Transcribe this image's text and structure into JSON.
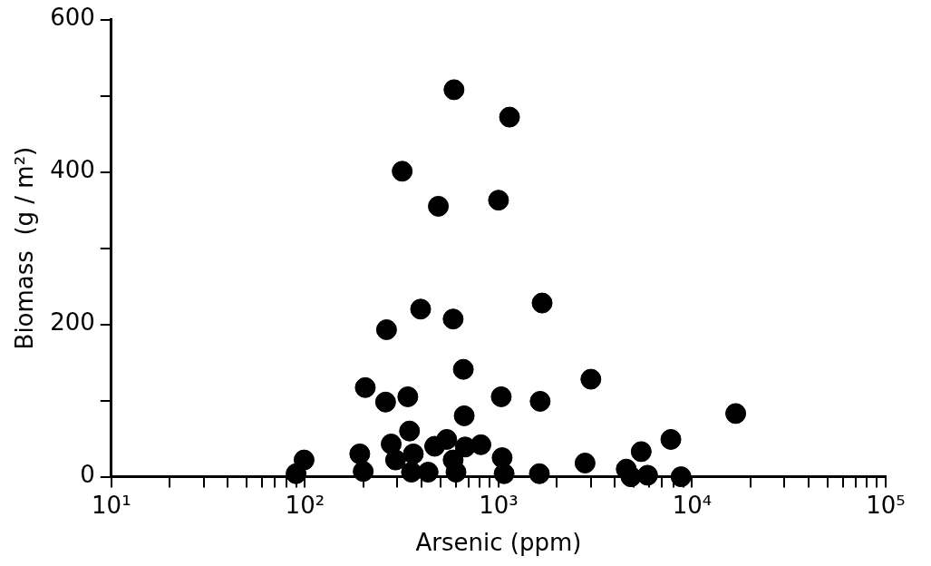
{
  "chart_data": {
    "type": "scatter",
    "xlabel": "Arsenic (ppm)",
    "ylabel": "Biomass  (g / m²)",
    "log": "x",
    "grid": false,
    "legend": false,
    "marker": "circle",
    "xlim": [
      10,
      100000
    ],
    "ylim": [
      0,
      600
    ],
    "xticks": [
      {
        "value": 10,
        "label": "10¹"
      },
      {
        "value": 20,
        "label": null
      },
      {
        "value": 30,
        "label": null
      },
      {
        "value": 40,
        "label": null
      },
      {
        "value": 50,
        "label": null
      },
      {
        "value": 60,
        "label": null
      },
      {
        "value": 70,
        "label": null
      },
      {
        "value": 80,
        "label": null
      },
      {
        "value": 90,
        "label": null
      },
      {
        "value": 100,
        "label": "10²"
      },
      {
        "value": 200,
        "label": null
      },
      {
        "value": 300,
        "label": null
      },
      {
        "value": 400,
        "label": null
      },
      {
        "value": 500,
        "label": null
      },
      {
        "value": 600,
        "label": null
      },
      {
        "value": 700,
        "label": null
      },
      {
        "value": 800,
        "label": null
      },
      {
        "value": 900,
        "label": null
      },
      {
        "value": 1000,
        "label": "10³"
      },
      {
        "value": 2000,
        "label": null
      },
      {
        "value": 3000,
        "label": null
      },
      {
        "value": 4000,
        "label": null
      },
      {
        "value": 5000,
        "label": null
      },
      {
        "value": 6000,
        "label": null
      },
      {
        "value": 7000,
        "label": null
      },
      {
        "value": 8000,
        "label": null
      },
      {
        "value": 9000,
        "label": null
      },
      {
        "value": 10000,
        "label": "10⁴"
      },
      {
        "value": 20000,
        "label": null
      },
      {
        "value": 30000,
        "label": null
      },
      {
        "value": 40000,
        "label": null
      },
      {
        "value": 50000,
        "label": null
      },
      {
        "value": 60000,
        "label": null
      },
      {
        "value": 70000,
        "label": null
      },
      {
        "value": 80000,
        "label": null
      },
      {
        "value": 90000,
        "label": null
      },
      {
        "value": 100000,
        "label": "10⁵"
      }
    ],
    "yticks": [
      0,
      {
        "value": 100,
        "label": null
      },
      200,
      {
        "value": 300,
        "label": null
      },
      400,
      {
        "value": 500,
        "label": null
      },
      600
    ],
    "series": [
      {
        "color": "#000000",
        "x": [
          589,
          1140,
          318,
          489,
          1000,
          396,
          264,
          583,
          1680,
          658,
          3000,
          205,
          261,
          340,
          1033,
          1641,
          665,
          347,
          99,
          90,
          192,
          200,
          279,
          294,
          363,
          355,
          433,
          468,
          540,
          583,
          603,
          673,
          811,
          1044,
          1069,
          1626,
          2800,
          16800,
          7770,
          5460,
          4570,
          4830,
          5890,
          8770
        ],
        "values": [
          508,
          472,
          401,
          355,
          363,
          220,
          193,
          207,
          228,
          141,
          128,
          117,
          98,
          105,
          105,
          99,
          80,
          60,
          22,
          4,
          30,
          7,
          43,
          22,
          30,
          6,
          6,
          40,
          49,
          22,
          6,
          39,
          42,
          25,
          4,
          4,
          18,
          83,
          49,
          33,
          10,
          0,
          2,
          0
        ]
      }
    ]
  }
}
